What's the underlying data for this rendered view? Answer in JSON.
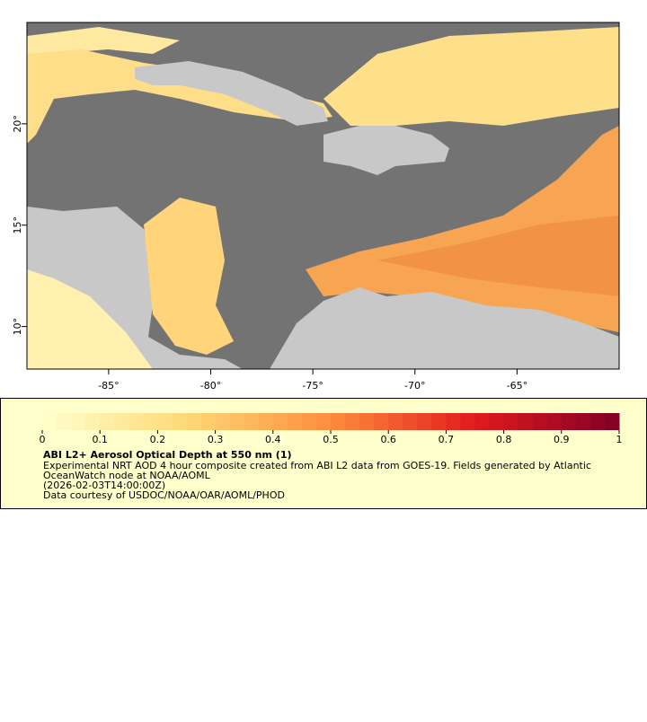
{
  "map": {
    "xlim": [
      -89,
      -60
    ],
    "ylim": [
      7.9,
      25
    ],
    "xticks": [
      {
        "value": -85,
        "label": "-85°"
      },
      {
        "value": -80,
        "label": "-80°"
      },
      {
        "value": -75,
        "label": "-75°"
      },
      {
        "value": -70,
        "label": "-70°"
      },
      {
        "value": -65,
        "label": "-65°"
      }
    ],
    "yticks": [
      {
        "value": 10,
        "label": "10°"
      },
      {
        "value": 15,
        "label": "15°"
      },
      {
        "value": 20,
        "label": "20°"
      }
    ]
  },
  "colorbar": {
    "range": [
      0,
      1
    ],
    "ticks": [
      0,
      0.1,
      0.2,
      0.3,
      0.4,
      0.5,
      0.6,
      0.7,
      0.8,
      0.9,
      1
    ]
  },
  "legend": {
    "title": "ABI L2+ Aerosol Optical Depth at 550 nm (1)",
    "lines": [
      "Experimental NRT AOD 4 hour composite created from ABI L2 data from GOES-19. Fields generated by Atlantic",
      "OceanWatch node at NOAA/AOML",
      "(2026-02-03T14:00:00Z)",
      "Data courtesy of USDOC/NOAA/OAR/AOML/PHOD"
    ]
  }
}
